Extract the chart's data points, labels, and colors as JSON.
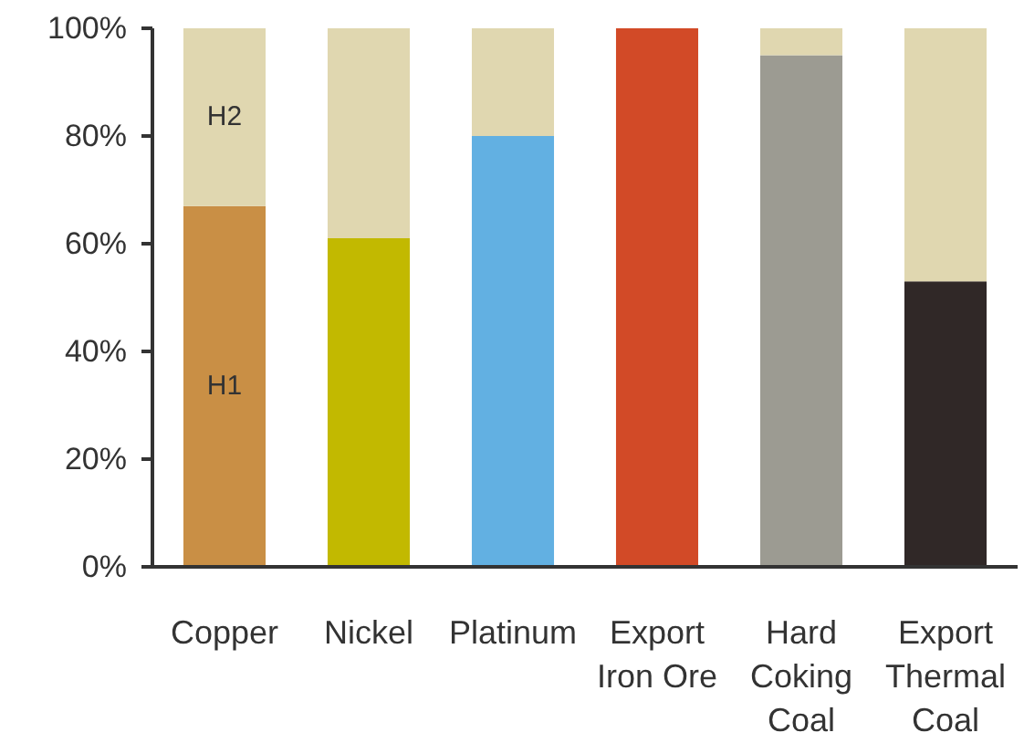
{
  "chart_data": {
    "type": "bar",
    "stacked": true,
    "categories": [
      "Copper",
      "Nickel",
      "Platinum",
      "Export\nIron Ore",
      "Hard\nCoking\nCoal",
      "Export\nThermal\nCoal"
    ],
    "series": [
      {
        "name": "H1",
        "colors": [
          "#c98f45",
          "#c2b900",
          "#62b0e2",
          "#d24a27",
          "#9c9b92",
          "#302827"
        ],
        "values": [
          67,
          61,
          80,
          100,
          95,
          53
        ]
      },
      {
        "name": "H2",
        "color": "#e0d7b0",
        "values": [
          33,
          39,
          20,
          0,
          5,
          47
        ]
      }
    ],
    "ylim": [
      0,
      100
    ],
    "yticks": [
      {
        "value": 0,
        "label": "0%"
      },
      {
        "value": 20,
        "label": "20%"
      },
      {
        "value": 40,
        "label": "40%"
      },
      {
        "value": 60,
        "label": "60%"
      },
      {
        "value": 80,
        "label": "80%"
      },
      {
        "value": 100,
        "label": "100%"
      }
    ]
  }
}
